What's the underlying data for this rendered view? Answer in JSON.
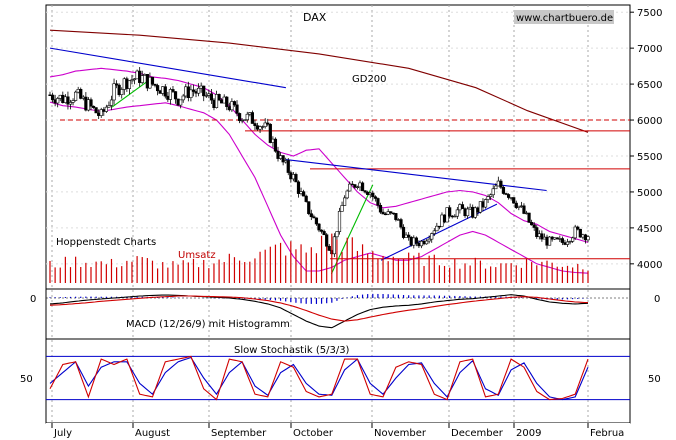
{
  "chart_data": [
    {
      "type": "candlestick",
      "title": "DAX",
      "source": "www.chartbuero.de",
      "provider": "Hoppenstedt Charts",
      "x_months": [
        "July",
        "August",
        "September",
        "October",
        "November",
        "December",
        "2009",
        "Februa"
      ],
      "y_ticks": [
        4000,
        4500,
        5000,
        5500,
        6000,
        6500,
        7000,
        7500
      ],
      "ylim": [
        3650,
        7600
      ],
      "gd200_label": "GD200",
      "gd200": [
        [
          0,
          7250
        ],
        [
          40,
          7180
        ],
        [
          80,
          7070
        ],
        [
          120,
          6920
        ],
        [
          160,
          6720
        ],
        [
          190,
          6450
        ],
        [
          213,
          6130
        ],
        [
          240,
          5830
        ]
      ],
      "closes_weekly": [
        6350,
        6300,
        6350,
        6200,
        6050,
        6400,
        6550,
        6600,
        6500,
        6420,
        6300,
        6420,
        6350,
        6250,
        6200,
        6050,
        6000,
        5850,
        5450,
        5200,
        4800,
        4500,
        4200,
        4950,
        5150,
        5000,
        4700,
        4650,
        4300,
        4300,
        4500,
        4700,
        4750,
        4700,
        4850,
        5100,
        4950,
        4700,
        4400,
        4300,
        4300,
        4450,
        4400
      ],
      "upper_band_weekly": [
        6600,
        6630,
        6680,
        6700,
        6720,
        6700,
        6680,
        6650,
        6600,
        6580,
        6550,
        6500,
        6450,
        6350,
        6200,
        6000,
        5800,
        5650,
        5550,
        5500,
        5580,
        5600,
        5400,
        5200,
        5000,
        4850,
        4780,
        4800,
        4850,
        4900,
        4950,
        5000,
        5020,
        5000,
        4950,
        4850,
        4700,
        4600,
        4550,
        4450,
        4400,
        4350,
        4300
      ],
      "lower_band_weekly": [
        6250,
        6200,
        6180,
        6150,
        6120,
        6150,
        6180,
        6200,
        6220,
        6240,
        6200,
        6150,
        6100,
        6000,
        5800,
        5500,
        5200,
        4800,
        4400,
        4100,
        3900,
        3900,
        3950,
        4050,
        4100,
        4150,
        4100,
        4050,
        4050,
        4100,
        4200,
        4300,
        4400,
        4450,
        4400,
        4300,
        4200,
        4100,
        4000,
        3950,
        3900,
        3880,
        3870
      ],
      "hlines_red": [
        5850,
        5320,
        4070
      ],
      "hline_red_dashed": 6000,
      "trend_blue": [
        [
          [
            0,
            7000
          ],
          [
            57,
            6450
          ]
        ],
        [
          [
            57,
            5450
          ],
          [
            120,
            5020
          ]
        ],
        [
          [
            80,
            4050
          ],
          [
            108,
            4830
          ]
        ]
      ],
      "trend_green": [
        [
          [
            15,
            6180
          ],
          [
            25,
            6600
          ]
        ],
        [
          [
            68,
            3860
          ],
          [
            78,
            5100
          ]
        ]
      ]
    },
    {
      "type": "bar",
      "title": "Umsatz",
      "values": [
        18,
        20,
        22,
        21,
        20,
        19,
        22,
        23,
        20,
        18,
        17,
        19,
        20,
        22,
        24,
        26,
        28,
        30,
        36,
        34,
        32,
        38,
        44,
        40,
        34,
        30,
        28,
        26,
        24,
        24,
        22,
        22,
        20,
        20,
        19,
        18,
        20,
        21,
        21,
        20,
        19,
        18,
        17
      ]
    },
    {
      "type": "line",
      "title": "MACD (12/26/9) mit Histogramm",
      "y_ticks": [
        0
      ],
      "macd_weekly": [
        -18,
        -15,
        -10,
        -6,
        -3,
        0,
        3,
        6,
        8,
        9,
        8,
        6,
        4,
        2,
        0,
        -4,
        -10,
        -18,
        -30,
        -50,
        -70,
        -85,
        -90,
        -70,
        -50,
        -35,
        -28,
        -24,
        -22,
        -18,
        -12,
        -8,
        -4,
        -2,
        2,
        6,
        10,
        6,
        -4,
        -12,
        -16,
        -18,
        -16
      ],
      "signal_weekly": [
        -22,
        -20,
        -17,
        -14,
        -10,
        -7,
        -4,
        -1,
        2,
        4,
        6,
        6,
        5,
        4,
        3,
        1,
        -3,
        -8,
        -15,
        -25,
        -38,
        -52,
        -64,
        -70,
        -66,
        -58,
        -50,
        -43,
        -37,
        -32,
        -26,
        -20,
        -15,
        -10,
        -6,
        -2,
        2,
        4,
        2,
        -3,
        -8,
        -12,
        -14
      ]
    },
    {
      "type": "line",
      "title": "Slow Stochastik (5/3/3)",
      "y_ticks": [
        50
      ],
      "ylim": [
        0,
        100
      ],
      "k_weekly": [
        30,
        75,
        80,
        15,
        85,
        75,
        85,
        20,
        15,
        80,
        85,
        90,
        30,
        10,
        85,
        80,
        20,
        15,
        80,
        70,
        25,
        15,
        20,
        85,
        85,
        20,
        15,
        70,
        80,
        75,
        20,
        10,
        80,
        85,
        15,
        20,
        85,
        70,
        25,
        10,
        12,
        20,
        85
      ],
      "d_weekly": [
        40,
        60,
        80,
        35,
        70,
        80,
        80,
        40,
        20,
        60,
        80,
        88,
        50,
        20,
        60,
        80,
        35,
        18,
        60,
        75,
        40,
        20,
        18,
        65,
        85,
        40,
        20,
        50,
        75,
        78,
        40,
        15,
        60,
        82,
        30,
        18,
        65,
        78,
        40,
        15,
        10,
        15,
        70
      ],
      "hlines": [
        90,
        10
      ]
    }
  ]
}
